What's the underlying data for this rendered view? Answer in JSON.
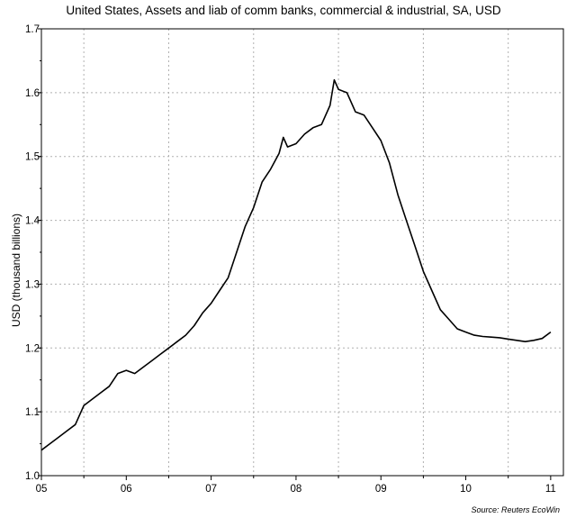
{
  "chart_data": {
    "type": "line",
    "title": "United States, Assets and liab of comm banks, commercial & industrial, SA, USD",
    "ylabel": "USD (thousand billions)",
    "xlabel": "",
    "source": "Source: Reuters EcoWin",
    "xlim": [
      2005.0,
      2011.15
    ],
    "ylim": [
      1.0,
      1.7
    ],
    "x_ticks": [
      {
        "value": 2005.0,
        "label": "05"
      },
      {
        "value": 2006.0,
        "label": "06"
      },
      {
        "value": 2007.0,
        "label": "07"
      },
      {
        "value": 2008.0,
        "label": "08"
      },
      {
        "value": 2009.0,
        "label": "09"
      },
      {
        "value": 2010.0,
        "label": "10"
      },
      {
        "value": 2011.0,
        "label": "11"
      }
    ],
    "y_ticks": [
      {
        "value": 1.0,
        "label": "1.0"
      },
      {
        "value": 1.1,
        "label": "1.1"
      },
      {
        "value": 1.2,
        "label": "1.2"
      },
      {
        "value": 1.3,
        "label": "1.3"
      },
      {
        "value": 1.4,
        "label": "1.4"
      },
      {
        "value": 1.5,
        "label": "1.5"
      },
      {
        "value": 1.6,
        "label": "1.6"
      },
      {
        "value": 1.7,
        "label": "1.7"
      }
    ],
    "grid": true,
    "series": [
      {
        "points": [
          [
            2005.0,
            1.04
          ],
          [
            2005.1,
            1.05
          ],
          [
            2005.2,
            1.06
          ],
          [
            2005.3,
            1.07
          ],
          [
            2005.4,
            1.08
          ],
          [
            2005.5,
            1.11
          ],
          [
            2005.6,
            1.12
          ],
          [
            2005.7,
            1.13
          ],
          [
            2005.8,
            1.14
          ],
          [
            2005.9,
            1.16
          ],
          [
            2006.0,
            1.165
          ],
          [
            2006.1,
            1.16
          ],
          [
            2006.2,
            1.17
          ],
          [
            2006.3,
            1.18
          ],
          [
            2006.4,
            1.19
          ],
          [
            2006.5,
            1.2
          ],
          [
            2006.6,
            1.21
          ],
          [
            2006.7,
            1.22
          ],
          [
            2006.8,
            1.235
          ],
          [
            2006.9,
            1.255
          ],
          [
            2007.0,
            1.27
          ],
          [
            2007.1,
            1.29
          ],
          [
            2007.2,
            1.31
          ],
          [
            2007.3,
            1.35
          ],
          [
            2007.4,
            1.39
          ],
          [
            2007.5,
            1.42
          ],
          [
            2007.6,
            1.46
          ],
          [
            2007.7,
            1.48
          ],
          [
            2007.8,
            1.505
          ],
          [
            2007.85,
            1.53
          ],
          [
            2007.9,
            1.515
          ],
          [
            2008.0,
            1.52
          ],
          [
            2008.1,
            1.535
          ],
          [
            2008.2,
            1.545
          ],
          [
            2008.3,
            1.55
          ],
          [
            2008.4,
            1.58
          ],
          [
            2008.45,
            1.62
          ],
          [
            2008.5,
            1.605
          ],
          [
            2008.6,
            1.6
          ],
          [
            2008.7,
            1.57
          ],
          [
            2008.8,
            1.565
          ],
          [
            2008.9,
            1.545
          ],
          [
            2009.0,
            1.525
          ],
          [
            2009.1,
            1.49
          ],
          [
            2009.2,
            1.44
          ],
          [
            2009.3,
            1.4
          ],
          [
            2009.4,
            1.36
          ],
          [
            2009.5,
            1.32
          ],
          [
            2009.6,
            1.29
          ],
          [
            2009.7,
            1.26
          ],
          [
            2009.8,
            1.245
          ],
          [
            2009.9,
            1.23
          ],
          [
            2010.0,
            1.225
          ],
          [
            2010.1,
            1.22
          ],
          [
            2010.2,
            1.218
          ],
          [
            2010.3,
            1.217
          ],
          [
            2010.4,
            1.216
          ],
          [
            2010.5,
            1.214
          ],
          [
            2010.6,
            1.212
          ],
          [
            2010.7,
            1.21
          ],
          [
            2010.8,
            1.212
          ],
          [
            2010.9,
            1.215
          ],
          [
            2011.0,
            1.225
          ]
        ]
      }
    ]
  }
}
